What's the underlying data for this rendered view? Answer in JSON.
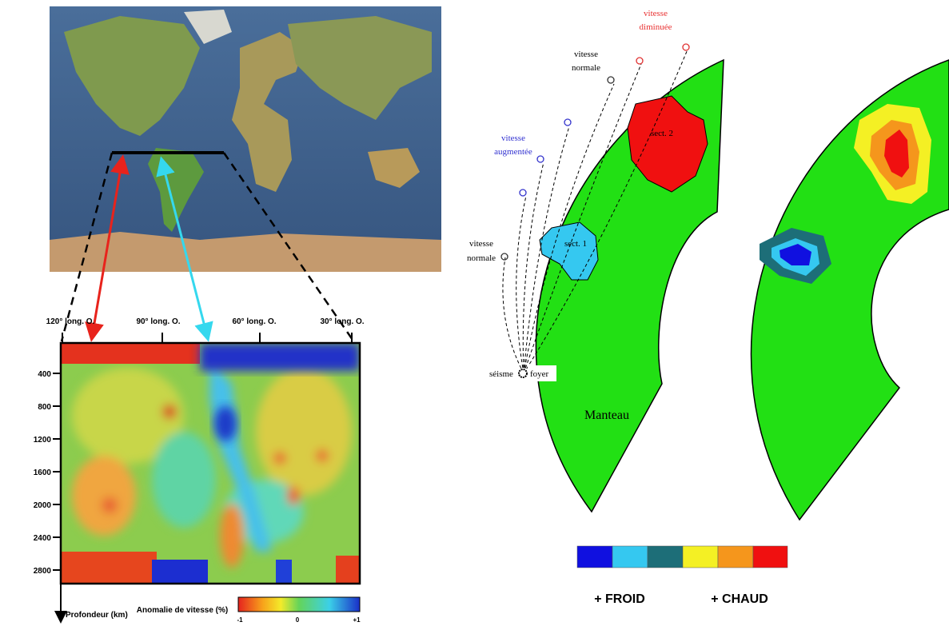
{
  "tomography": {
    "longitude_labels": [
      "120° long. O.",
      "90° long. O.",
      "60° long. O.",
      "30° long. O."
    ],
    "depth_ticks": [
      400,
      800,
      1200,
      1600,
      2000,
      2400,
      2800
    ],
    "depth_axis_label": "Profondeur (km)",
    "colorbar": {
      "title": "Anomalie de vitesse (%)",
      "labels": [
        "-1",
        "0",
        "+1"
      ]
    }
  },
  "diagram": {
    "decreased_label": [
      "vitesse",
      "diminuée"
    ],
    "normal_top_label": [
      "vitesse",
      "normale"
    ],
    "increased_label": [
      "vitesse",
      "augmentée"
    ],
    "normal_left_label": [
      "vitesse",
      "normale"
    ],
    "sector_1": "sect. 1",
    "sector_2": "sect. 2",
    "earthquake": "séisme",
    "focus": "foyer",
    "mantle": "Manteau"
  },
  "legend": {
    "cold": "+ FROID",
    "hot": "+ CHAUD"
  }
}
